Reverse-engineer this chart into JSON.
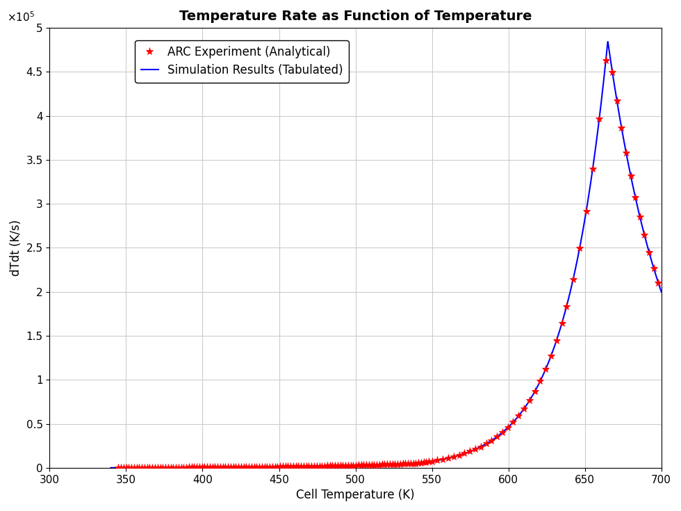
{
  "title": "Temperature Rate as Function of Temperature",
  "xlabel": "Cell Temperature (K)",
  "ylabel": "dTdt (K/s)",
  "xlim": [
    300,
    700
  ],
  "ylim": [
    0,
    500000.0
  ],
  "ytick_scale": 100000.0,
  "yticks_vals": [
    0,
    0.5,
    1.0,
    1.5,
    2.0,
    2.5,
    3.0,
    3.5,
    4.0,
    4.5,
    5.0
  ],
  "yticks_labels": [
    "0",
    "0.5",
    "1",
    "1.5",
    "2",
    "2.5",
    "3",
    "3.5",
    "4",
    "4.5",
    "5"
  ],
  "xticks": [
    300,
    350,
    400,
    450,
    500,
    550,
    600,
    650,
    700
  ],
  "legend_labels": [
    "ARC Experiment (Analytical)",
    "Simulation Results (Tabulated)"
  ],
  "marker_color": "red",
  "line_color": "blue",
  "background_color": "white",
  "grid_color": "#cccccc",
  "title_fontsize": 14,
  "label_fontsize": 12,
  "tick_fontsize": 11
}
